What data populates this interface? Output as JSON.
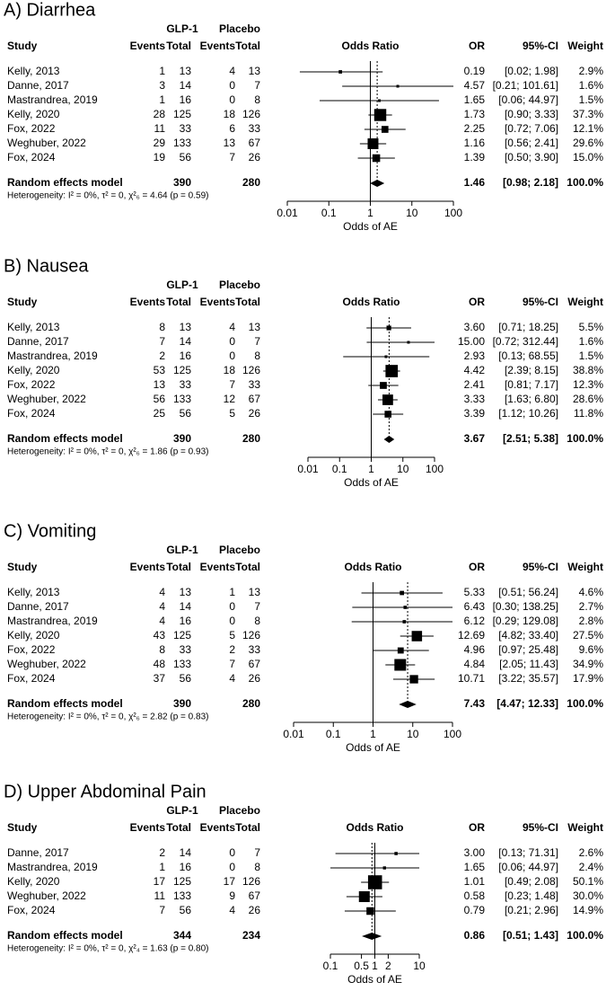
{
  "chart_data": [
    {
      "type": "forest",
      "title": "A) Diarrhea",
      "group_labels": [
        "GLP-1",
        "Placebo"
      ],
      "headers": [
        "Study",
        "Events",
        "Total",
        "Events",
        "Total",
        "Odds Ratio",
        "OR",
        "95%-CI",
        "Weight"
      ],
      "categories": [
        "Kelly, 2013",
        "Danne, 2017",
        "Mastrandrea, 2019",
        "Kelly, 2020",
        "Fox, 2022",
        "Weghuber, 2022",
        "Fox, 2024"
      ],
      "events_1": [
        1,
        3,
        1,
        28,
        11,
        29,
        19
      ],
      "total_1": [
        13,
        14,
        16,
        125,
        33,
        133,
        56
      ],
      "events_2": [
        4,
        0,
        0,
        18,
        6,
        13,
        7
      ],
      "total_2": [
        13,
        7,
        8,
        126,
        33,
        67,
        26
      ],
      "values": [
        0.19,
        4.57,
        1.65,
        1.73,
        2.25,
        1.16,
        1.39
      ],
      "value_labels": [
        "0.19",
        "4.57",
        "1.65",
        "1.73",
        "2.25",
        "1.16",
        "1.39"
      ],
      "ci_low": [
        0.02,
        0.21,
        0.06,
        0.9,
        0.72,
        0.56,
        0.5
      ],
      "ci_high": [
        1.98,
        101.61,
        44.97,
        3.33,
        7.06,
        2.41,
        3.9
      ],
      "ci_labels": [
        "[0.02; 1.98]",
        "[0.21; 101.61]",
        "[0.06; 44.97]",
        "[0.90; 3.33]",
        "[0.72; 7.06]",
        "[0.56; 2.41]",
        "[0.50; 3.90]"
      ],
      "weights": [
        2.9,
        1.6,
        1.5,
        37.3,
        12.1,
        29.6,
        15.0
      ],
      "weight_labels": [
        "2.9%",
        "1.6%",
        "1.5%",
        "37.3%",
        "12.1%",
        "29.6%",
        "15.0%"
      ],
      "pooled": {
        "name": "Random effects model",
        "total_1": 390,
        "total_2": 280,
        "value": 1.46,
        "value_label": "1.46",
        "ci_low": 0.98,
        "ci_high": 2.18,
        "ci_label": "[0.98; 2.18]",
        "weight": 100,
        "weight_label": "100.0%"
      },
      "heterogeneity": "Heterogeneity: I² = 0%, τ² = 0, χ²₆ = 4.64 (p = 0.59)",
      "xlabel": "Odds of AE",
      "xscale": "log",
      "xlim": [
        0.01,
        100
      ],
      "xticks": [
        0.01,
        0.1,
        1,
        10,
        100
      ]
    },
    {
      "type": "forest",
      "title": "B) Nausea",
      "group_labels": [
        "GLP-1",
        "Placebo"
      ],
      "headers": [
        "Study",
        "Events",
        "Total",
        "Events",
        "Total",
        "Odds Ratio",
        "OR",
        "95%-CI",
        "Weight"
      ],
      "categories": [
        "Kelly, 2013",
        "Danne, 2017",
        "Mastrandrea, 2019",
        "Kelly, 2020",
        "Fox, 2022",
        "Weghuber, 2022",
        "Fox, 2024"
      ],
      "events_1": [
        8,
        7,
        2,
        53,
        13,
        56,
        25
      ],
      "total_1": [
        13,
        14,
        16,
        125,
        33,
        133,
        56
      ],
      "events_2": [
        4,
        0,
        0,
        18,
        7,
        12,
        5
      ],
      "total_2": [
        13,
        7,
        8,
        126,
        33,
        67,
        26
      ],
      "values": [
        3.6,
        15.0,
        2.93,
        4.42,
        2.41,
        3.33,
        3.39
      ],
      "value_labels": [
        "3.60",
        "15.00",
        "2.93",
        "4.42",
        "2.41",
        "3.33",
        "3.39"
      ],
      "ci_low": [
        0.71,
        0.72,
        0.13,
        2.39,
        0.81,
        1.63,
        1.12
      ],
      "ci_high": [
        18.25,
        312.44,
        68.55,
        8.15,
        7.17,
        6.8,
        10.26
      ],
      "ci_labels": [
        "[0.71; 18.25]",
        "[0.72; 312.44]",
        "[0.13; 68.55]",
        "[2.39; 8.15]",
        "[0.81; 7.17]",
        "[1.63; 6.80]",
        "[1.12; 10.26]"
      ],
      "weights": [
        5.5,
        1.6,
        1.5,
        38.8,
        12.3,
        28.6,
        11.8
      ],
      "weight_labels": [
        "5.5%",
        "1.6%",
        "1.5%",
        "38.8%",
        "12.3%",
        "28.6%",
        "11.8%"
      ],
      "pooled": {
        "name": "Random effects model",
        "total_1": 390,
        "total_2": 280,
        "value": 3.67,
        "value_label": "3.67",
        "ci_low": 2.51,
        "ci_high": 5.38,
        "ci_label": "[2.51; 5.38]",
        "weight": 100,
        "weight_label": "100.0%"
      },
      "heterogeneity": "Heterogeneity: I² = 0%, τ² = 0, χ²₆ = 1.86 (p = 0.93)",
      "xlabel": "Odds of AE",
      "xscale": "log",
      "xlim": [
        0.01,
        100
      ],
      "xticks": [
        0.01,
        0.1,
        1,
        10,
        100
      ]
    },
    {
      "type": "forest",
      "title": "C) Vomiting",
      "group_labels": [
        "GLP-1",
        "Placebo"
      ],
      "headers": [
        "Study",
        "Events",
        "Total",
        "Events",
        "Total",
        "Odds Ratio",
        "OR",
        "95%-CI",
        "Weight"
      ],
      "categories": [
        "Kelly, 2013",
        "Danne, 2017",
        "Mastrandrea, 2019",
        "Kelly, 2020",
        "Fox, 2022",
        "Weghuber, 2022",
        "Fox, 2024"
      ],
      "events_1": [
        4,
        4,
        4,
        43,
        8,
        48,
        37
      ],
      "total_1": [
        13,
        14,
        16,
        125,
        33,
        133,
        56
      ],
      "events_2": [
        1,
        0,
        0,
        5,
        2,
        7,
        4
      ],
      "total_2": [
        13,
        7,
        8,
        126,
        33,
        67,
        26
      ],
      "values": [
        5.33,
        6.43,
        6.12,
        12.69,
        4.96,
        4.84,
        10.71
      ],
      "value_labels": [
        "5.33",
        "6.43",
        "6.12",
        "12.69",
        "4.96",
        "4.84",
        "10.71"
      ],
      "ci_low": [
        0.51,
        0.3,
        0.29,
        4.82,
        0.97,
        2.05,
        3.22
      ],
      "ci_high": [
        56.24,
        138.25,
        129.08,
        33.4,
        25.48,
        11.43,
        35.57
      ],
      "ci_labels": [
        "[0.51; 56.24]",
        "[0.30; 138.25]",
        "[0.29; 129.08]",
        "[4.82; 33.40]",
        "[0.97; 25.48]",
        "[2.05; 11.43]",
        "[3.22; 35.57]"
      ],
      "weights": [
        4.6,
        2.7,
        2.8,
        27.5,
        9.6,
        34.9,
        17.9
      ],
      "weight_labels": [
        "4.6%",
        "2.7%",
        "2.8%",
        "27.5%",
        "9.6%",
        "34.9%",
        "17.9%"
      ],
      "pooled": {
        "name": "Random effects model",
        "total_1": 390,
        "total_2": 280,
        "value": 7.43,
        "value_label": "7.43",
        "ci_low": 4.47,
        "ci_high": 12.33,
        "ci_label": "[4.47; 12.33]",
        "weight": 100,
        "weight_label": "100.0%"
      },
      "heterogeneity": "Heterogeneity: I² = 0%, τ² = 0, χ²₆ = 2.82 (p = 0.83)",
      "xlabel": "Odds of AE",
      "xscale": "log",
      "xlim": [
        0.01,
        100
      ],
      "xticks": [
        0.01,
        0.1,
        1,
        10,
        100
      ]
    },
    {
      "type": "forest",
      "title": "D) Upper Abdominal Pain",
      "group_labels": [
        "GLP-1",
        "Placebo"
      ],
      "headers": [
        "Study",
        "Events",
        "Total",
        "Events",
        "Total",
        "Odds Ratio",
        "OR",
        "95%-CI",
        "Weight"
      ],
      "categories": [
        "Danne, 2017",
        "Mastrandrea, 2019",
        "Kelly, 2020",
        "Weghuber, 2022",
        "Fox, 2024"
      ],
      "events_1": [
        2,
        1,
        17,
        11,
        7
      ],
      "total_1": [
        14,
        16,
        125,
        133,
        56
      ],
      "events_2": [
        0,
        0,
        17,
        9,
        4
      ],
      "total_2": [
        7,
        8,
        126,
        67,
        26
      ],
      "values": [
        3.0,
        1.65,
        1.01,
        0.58,
        0.79
      ],
      "value_labels": [
        "3.00",
        "1.65",
        "1.01",
        "0.58",
        "0.79"
      ],
      "ci_low": [
        0.13,
        0.06,
        0.49,
        0.23,
        0.21
      ],
      "ci_high": [
        71.31,
        44.97,
        2.08,
        1.48,
        2.96
      ],
      "ci_labels": [
        "[0.13; 71.31]",
        "[0.06; 44.97]",
        "[0.49; 2.08]",
        "[0.23; 1.48]",
        "[0.21; 2.96]"
      ],
      "weights": [
        2.6,
        2.4,
        50.1,
        30.0,
        14.9
      ],
      "weight_labels": [
        "2.6%",
        "2.4%",
        "50.1%",
        "30.0%",
        "14.9%"
      ],
      "pooled": {
        "name": "Random effects model",
        "total_1": 344,
        "total_2": 234,
        "value": 0.86,
        "value_label": "0.86",
        "ci_low": 0.51,
        "ci_high": 1.43,
        "ci_label": "[0.51; 1.43]",
        "weight": 100,
        "weight_label": "100.0%"
      },
      "heterogeneity": "Heterogeneity: I² = 0%, τ² = 0, χ²₄ = 1.63 (p = 0.80)",
      "xlabel": "Odds of AE",
      "xscale": "log",
      "xlim": [
        0.1,
        10
      ],
      "xticks": [
        0.1,
        0.5,
        1,
        2,
        10
      ]
    }
  ]
}
